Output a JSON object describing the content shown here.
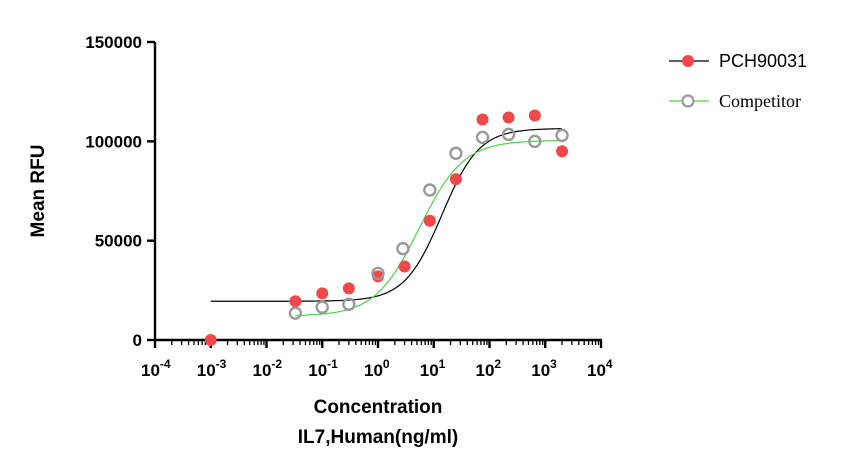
{
  "chart_data": {
    "type": "scatter",
    "title": "",
    "xscale": "log",
    "xlim_exp": [
      -4,
      4
    ],
    "x_tick_base": "10",
    "x_tick_exponents": [
      "-4",
      "-3",
      "-2",
      "-1",
      "0",
      "1",
      "2",
      "3",
      "4"
    ],
    "xlabel_line1": "Concentration",
    "xlabel_line2": "IL7,Human(ng/ml)",
    "ylabel": "Mean RFU",
    "ylim": [
      0,
      150000
    ],
    "y_ticks": [
      {
        "value": 0,
        "label": "0"
      },
      {
        "value": 50000,
        "label": "50000"
      },
      {
        "value": 100000,
        "label": "100000"
      },
      {
        "value": 150000,
        "label": "150000"
      }
    ],
    "grid": false,
    "legend_position": "top-right",
    "series": [
      {
        "name": "PCH90031",
        "marker": "filled-circle",
        "marker_color": "#f0484a",
        "line_color": "#000000",
        "x": [
          0.001,
          0.033,
          0.1,
          0.3,
          1,
          3,
          8.5,
          25,
          75,
          220,
          650,
          2000
        ],
        "y": [
          0,
          19500,
          23500,
          26000,
          32000,
          37000,
          60000,
          81000,
          111000,
          112000,
          113000,
          95000
        ],
        "fit": {
          "bottom": 19500,
          "top": 106500,
          "ec50": 14,
          "hill": 1.3
        }
      },
      {
        "name": "Competitor",
        "marker": "open-circle",
        "marker_color": "#999999",
        "line_color": "#4cd24c",
        "x": [
          0.033,
          0.1,
          0.3,
          1,
          2.8,
          8.5,
          25,
          75,
          220,
          650,
          2000
        ],
        "y": [
          13500,
          16500,
          18000,
          33500,
          46000,
          75500,
          94000,
          102000,
          103500,
          100000,
          103000
        ],
        "fit": {
          "bottom": 12000,
          "top": 100500,
          "ec50": 5.5,
          "hill": 1.1
        }
      }
    ]
  }
}
